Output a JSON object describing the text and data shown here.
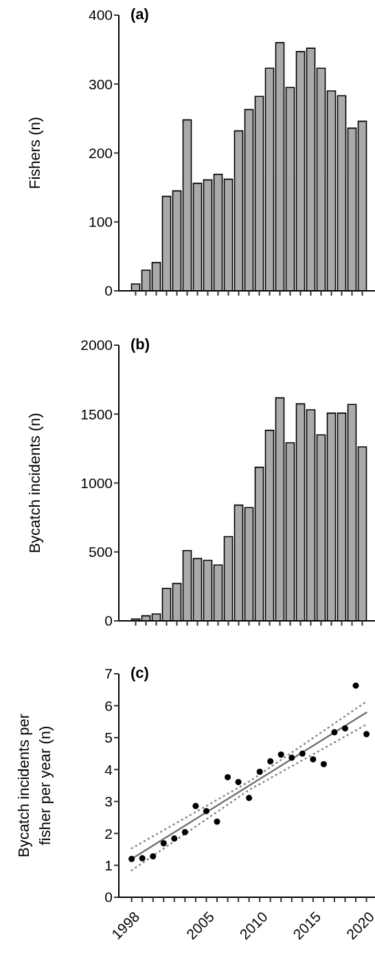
{
  "chart_data": [
    {
      "type": "bar",
      "title": "(a)",
      "ylabel": "Fishers (n)",
      "categories": [
        null,
        null,
        null,
        null,
        null,
        null,
        null,
        null,
        null,
        null,
        null,
        null,
        null,
        null,
        null,
        null,
        null,
        null,
        null,
        null,
        null,
        null,
        null
      ],
      "series": [
        {
          "color": "#aaaaaa",
          "values": [
            10,
            30,
            41,
            137,
            145,
            248,
            156,
            161,
            169,
            162,
            232,
            263,
            282,
            323,
            360,
            295,
            347,
            352,
            323,
            290,
            283,
            236,
            246
          ]
        }
      ],
      "ylim": [
        0,
        400
      ],
      "yticks": [
        0,
        100,
        200,
        300,
        400
      ],
      "grid": false
    },
    {
      "type": "bar",
      "title": "(b)",
      "ylabel": "Bycatch incidents (n)",
      "categories": [
        null,
        null,
        null,
        null,
        null,
        null,
        null,
        null,
        null,
        null,
        null,
        null,
        null,
        null,
        null,
        null,
        null,
        null,
        null,
        null,
        null,
        null,
        null
      ],
      "series": [
        {
          "color": "#aaaaaa",
          "values": [
            13,
            37,
            50,
            236,
            271,
            510,
            452,
            439,
            405,
            611,
            840,
            822,
            1114,
            1382,
            1618,
            1292,
            1574,
            1531,
            1349,
            1507,
            1507,
            1570,
            1262
          ]
        }
      ],
      "ylim": [
        0,
        2000
      ],
      "yticks": [
        0,
        500,
        1000,
        1500,
        2000
      ],
      "grid": false
    },
    {
      "type": "scatter",
      "title": "(c)",
      "ylabel": "Bycatch incidents per fisher per year (n)",
      "series": [
        {
          "color": "#000000",
          "marker": "circle",
          "x": [
            1998,
            1999,
            2000,
            2001,
            2002,
            2003,
            2004,
            2005,
            2006,
            2007,
            2008,
            2009,
            2010,
            2011,
            2012,
            2013,
            2014,
            2015,
            2016,
            2017,
            2018,
            2019,
            2020
          ],
          "values": [
            1.2,
            1.22,
            1.28,
            1.69,
            1.84,
            2.04,
            2.86,
            2.7,
            2.37,
            3.76,
            3.61,
            3.11,
            3.93,
            4.26,
            4.47,
            4.37,
            4.5,
            4.32,
            4.17,
            5.17,
            5.29,
            6.63,
            5.11
          ]
        },
        {
          "type": "line",
          "color": "#6e6e6e",
          "line_style": "solid",
          "marker": "none",
          "x": [
            1998,
            2020
          ],
          "values": [
            1.2,
            5.79
          ]
        },
        {
          "type": "line",
          "color": "#8a8a8a",
          "line_style": "dotted",
          "marker": "none",
          "x": [
            1998,
            2009,
            2020
          ],
          "values": [
            1.53,
            3.62,
            6.13
          ]
        },
        {
          "type": "line",
          "color": "#8a8a8a",
          "line_style": "dotted",
          "marker": "none",
          "x": [
            1998,
            2009,
            2020
          ],
          "values": [
            0.84,
            3.36,
            5.41
          ]
        }
      ],
      "xlim": [
        1996.8,
        2020.8
      ],
      "xticks": [
        1998,
        {
          "value": 1999,
          "label": null
        },
        {
          "value": 2000,
          "label": null
        },
        {
          "value": 2001,
          "label": null
        },
        {
          "value": 2002,
          "label": null
        },
        {
          "value": 2003,
          "label": null
        },
        {
          "value": 2004,
          "label": null
        },
        2005,
        {
          "value": 2006,
          "label": null
        },
        {
          "value": 2007,
          "label": null
        },
        {
          "value": 2008,
          "label": null
        },
        {
          "value": 2009,
          "label": null
        },
        2010,
        {
          "value": 2011,
          "label": null
        },
        {
          "value": 2012,
          "label": null
        },
        {
          "value": 2013,
          "label": null
        },
        {
          "value": 2014,
          "label": null
        },
        2015,
        {
          "value": 2016,
          "label": null
        },
        {
          "value": 2017,
          "label": null
        },
        {
          "value": 2018,
          "label": null
        },
        {
          "value": 2019,
          "label": null
        },
        2020
      ],
      "ylim": [
        0,
        7
      ],
      "yticks": [
        0,
        1,
        2,
        3,
        4,
        5,
        6,
        7
      ],
      "grid": false
    }
  ]
}
